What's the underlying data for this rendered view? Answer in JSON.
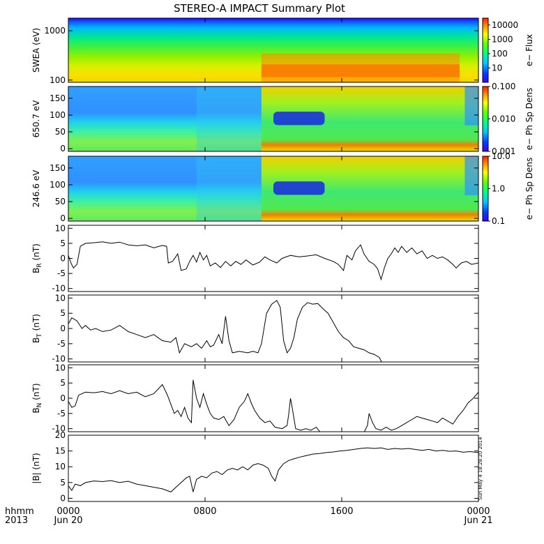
{
  "title": "STEREO-A IMPACT Summary Plot",
  "footer": {
    "left_top": "hhmm",
    "left_bottom": "2013"
  },
  "stamp": "Sun May  4 18:28:20 2014",
  "x_axis": {
    "hours": [
      0,
      24
    ],
    "ticks": [
      {
        "hour": 0,
        "top": "0000",
        "bottom": "Jun 20"
      },
      {
        "hour": 8,
        "top": "0800",
        "bottom": ""
      },
      {
        "hour": 16,
        "top": "1600",
        "bottom": ""
      },
      {
        "hour": 24,
        "top": "0000",
        "bottom": "Jun 21"
      }
    ]
  },
  "chart_data": [
    {
      "type": "heatmap",
      "name": "swea",
      "ylabel": "SWEA (eV)",
      "ylim": [
        90,
        1800
      ],
      "ylog": true,
      "yticks": [
        100,
        1000
      ],
      "ytick_labels": [
        "100",
        "1000"
      ],
      "colorbar": {
        "label": "e− Flux",
        "log": true,
        "range": [
          1,
          30000
        ],
        "ticks": [
          10,
          100,
          1000,
          10000
        ],
        "tick_labels": [
          "10",
          "100",
          "1000",
          "10000"
        ]
      },
      "colors": {
        "low": "#3c00ff",
        "high": "#ff2000"
      }
    },
    {
      "type": "heatmap",
      "name": "pad650",
      "ylabel": "650.7 eV",
      "ylim": [
        -8,
        185
      ],
      "yticks": [
        0,
        50,
        100,
        150
      ],
      "ytick_labels": [
        "0",
        "50",
        "100",
        "150"
      ],
      "colorbar": {
        "label": "e− Ph Sp Dens",
        "log": true,
        "range": [
          0.001,
          0.1
        ],
        "ticks": [
          0.001,
          0.01,
          0.1
        ],
        "tick_labels": [
          "0.001",
          "0.010",
          "0.100"
        ]
      }
    },
    {
      "type": "heatmap",
      "name": "pad246",
      "ylabel": "246.6 eV",
      "ylim": [
        -8,
        185
      ],
      "yticks": [
        0,
        50,
        100,
        150
      ],
      "ytick_labels": [
        "0",
        "50",
        "100",
        "150"
      ],
      "colorbar": {
        "label": "e− Ph Sp Dens",
        "log": true,
        "range": [
          0.1,
          10
        ],
        "ticks": [
          0.1,
          1,
          10
        ],
        "tick_labels": [
          "0.1",
          "1.0",
          "10.0"
        ]
      }
    },
    {
      "type": "line",
      "name": "BR",
      "ylabel": "B",
      "ylabel_sub": "R",
      "unit": "(nT)",
      "ylim": [
        -11,
        11
      ],
      "yticks": [
        -10,
        -5,
        0,
        5,
        10
      ],
      "ytick_labels": [
        "-10",
        "-5",
        "0",
        "5",
        "10"
      ],
      "points": [
        [
          0.0,
          1
        ],
        [
          0.15,
          -1.5
        ],
        [
          0.3,
          -3.2
        ],
        [
          0.5,
          -2
        ],
        [
          0.7,
          4
        ],
        [
          1,
          5
        ],
        [
          1.5,
          5.2
        ],
        [
          2,
          5.5
        ],
        [
          2.5,
          5
        ],
        [
          3,
          5.4
        ],
        [
          3.5,
          4.5
        ],
        [
          4,
          4.2
        ],
        [
          4.5,
          4.5
        ],
        [
          5,
          3.5
        ],
        [
          5.5,
          4.3
        ],
        [
          5.75,
          4
        ],
        [
          5.85,
          -1.5
        ],
        [
          6.1,
          -1
        ],
        [
          6.4,
          1.5
        ],
        [
          6.6,
          -4
        ],
        [
          6.9,
          -3.5
        ],
        [
          7.1,
          -1
        ],
        [
          7.3,
          1
        ],
        [
          7.5,
          -1.2
        ],
        [
          7.7,
          2
        ],
        [
          7.9,
          -0.5
        ],
        [
          8.1,
          1
        ],
        [
          8.3,
          -2.5
        ],
        [
          8.6,
          -1.5
        ],
        [
          8.9,
          -3
        ],
        [
          9.2,
          -1
        ],
        [
          9.5,
          -2.5
        ],
        [
          9.8,
          -1
        ],
        [
          10.1,
          -2
        ],
        [
          10.4,
          -0.5
        ],
        [
          10.8,
          -2.2
        ],
        [
          11.2,
          -1.2
        ],
        [
          11.5,
          0.5
        ],
        [
          11.8,
          -0.5
        ],
        [
          12.2,
          -1.5
        ],
        [
          12.5,
          0
        ],
        [
          13,
          1
        ],
        [
          13.5,
          0.5
        ],
        [
          14,
          0.8
        ],
        [
          14.5,
          1.2
        ],
        [
          15,
          0
        ],
        [
          15.5,
          -1
        ],
        [
          15.8,
          -2
        ],
        [
          16.1,
          -4
        ],
        [
          16.3,
          1
        ],
        [
          16.6,
          -0.5
        ],
        [
          16.8,
          2.5
        ],
        [
          17.1,
          4.5
        ],
        [
          17.3,
          1.5
        ],
        [
          17.6,
          -1
        ],
        [
          17.9,
          -2
        ],
        [
          18.1,
          -3.5
        ],
        [
          18.3,
          -7
        ],
        [
          18.5,
          -3
        ],
        [
          18.7,
          0
        ],
        [
          18.9,
          1.5
        ],
        [
          19.1,
          3.5
        ],
        [
          19.3,
          2
        ],
        [
          19.5,
          4
        ],
        [
          19.8,
          2
        ],
        [
          20.1,
          3.5
        ],
        [
          20.4,
          1.5
        ],
        [
          20.7,
          2.5
        ],
        [
          21,
          0
        ],
        [
          21.3,
          1
        ],
        [
          21.6,
          0
        ],
        [
          21.9,
          0.5
        ],
        [
          22.2,
          -0.5
        ],
        [
          22.5,
          -2
        ],
        [
          22.7,
          -3.2
        ],
        [
          23,
          -1.5
        ],
        [
          23.3,
          -1
        ],
        [
          23.6,
          -2
        ],
        [
          24,
          -1.5
        ]
      ]
    },
    {
      "type": "line",
      "name": "BT",
      "ylabel": "B",
      "ylabel_sub": "T",
      "unit": "(nT)",
      "ylim": [
        -11,
        11
      ],
      "yticks": [
        -10,
        -5,
        0,
        5,
        10
      ],
      "ytick_labels": [
        "-10",
        "-5",
        "0",
        "5",
        "10"
      ],
      "points": [
        [
          0.0,
          1.5
        ],
        [
          0.2,
          3.5
        ],
        [
          0.5,
          2.5
        ],
        [
          0.8,
          0
        ],
        [
          1,
          1
        ],
        [
          1.3,
          -0.5
        ],
        [
          1.6,
          0
        ],
        [
          2,
          -1
        ],
        [
          2.5,
          -0.5
        ],
        [
          3,
          1
        ],
        [
          3.5,
          -1
        ],
        [
          4,
          -2
        ],
        [
          4.5,
          -3
        ],
        [
          5,
          -2
        ],
        [
          5.5,
          -4
        ],
        [
          6,
          -4.5
        ],
        [
          6.3,
          -3
        ],
        [
          6.5,
          -8
        ],
        [
          6.8,
          -5
        ],
        [
          7.2,
          -6
        ],
        [
          7.5,
          -5
        ],
        [
          7.8,
          -6.5
        ],
        [
          8.1,
          -4
        ],
        [
          8.3,
          -6
        ],
        [
          8.5,
          -5.5
        ],
        [
          8.8,
          -2
        ],
        [
          9,
          -5
        ],
        [
          9.2,
          4
        ],
        [
          9.4,
          -4
        ],
        [
          9.6,
          -8
        ],
        [
          10,
          -7.5
        ],
        [
          10.5,
          -8
        ],
        [
          10.8,
          -7.5
        ],
        [
          11.1,
          -8
        ],
        [
          11.3,
          -5
        ],
        [
          11.6,
          5
        ],
        [
          11.9,
          8
        ],
        [
          12.2,
          9.2
        ],
        [
          12.4,
          7
        ],
        [
          12.6,
          -4
        ],
        [
          12.8,
          -8
        ],
        [
          13,
          -6.5
        ],
        [
          13.2,
          -3
        ],
        [
          13.4,
          3
        ],
        [
          13.7,
          7
        ],
        [
          14,
          8.5
        ],
        [
          14.3,
          8
        ],
        [
          14.6,
          8.2
        ],
        [
          14.9,
          6.5
        ],
        [
          15.2,
          5
        ],
        [
          15.5,
          2
        ],
        [
          15.8,
          -1
        ],
        [
          16.1,
          -3
        ],
        [
          16.4,
          -4
        ],
        [
          16.7,
          -6
        ],
        [
          17,
          -6.5
        ],
        [
          17.3,
          -7
        ],
        [
          17.6,
          -8
        ],
        [
          17.9,
          -8.5
        ],
        [
          18.2,
          -9.5
        ],
        [
          18.35,
          -11.2
        ]
      ]
    },
    {
      "type": "line",
      "name": "BN",
      "ylabel": "B",
      "ylabel_sub": "N",
      "unit": "(nT)",
      "ylim": [
        -11,
        11
      ],
      "yticks": [
        -10,
        -5,
        0,
        5,
        10
      ],
      "ytick_labels": [
        "-10",
        "-5",
        "0",
        "5",
        "10"
      ],
      "segments": [
        [
          [
            0.0,
            -1
          ],
          [
            0.2,
            -3
          ],
          [
            0.4,
            -2.5
          ],
          [
            0.6,
            1
          ],
          [
            1,
            2
          ],
          [
            1.5,
            1.8
          ],
          [
            2,
            2.2
          ],
          [
            2.5,
            1.5
          ],
          [
            3,
            2.5
          ],
          [
            3.5,
            1.5
          ],
          [
            4,
            2
          ],
          [
            4.5,
            0.5
          ],
          [
            5,
            1.5
          ],
          [
            5.5,
            4.5
          ],
          [
            5.8,
            1
          ],
          [
            6,
            -2
          ],
          [
            6.2,
            -5
          ],
          [
            6.4,
            -4
          ],
          [
            6.6,
            -6
          ],
          [
            6.8,
            -3
          ],
          [
            7,
            -6.5
          ],
          [
            7.2,
            -8
          ],
          [
            7.3,
            6
          ],
          [
            7.5,
            0
          ],
          [
            7.7,
            -3
          ],
          [
            7.9,
            1.5
          ],
          [
            8.1,
            -2
          ],
          [
            8.3,
            -5
          ],
          [
            8.5,
            -6.5
          ],
          [
            8.8,
            -7
          ],
          [
            9.1,
            -6
          ],
          [
            9.4,
            -9
          ],
          [
            9.7,
            -7
          ],
          [
            10,
            -3
          ],
          [
            10.3,
            -1
          ],
          [
            10.5,
            1.5
          ],
          [
            10.7,
            -1.5
          ],
          [
            10.9,
            -4
          ],
          [
            11.2,
            -6.5
          ],
          [
            11.5,
            -8
          ],
          [
            11.8,
            -7.5
          ],
          [
            12.1,
            -9.5
          ],
          [
            12.5,
            -10
          ],
          [
            12.8,
            -9
          ],
          [
            12.9,
            -5
          ],
          [
            13,
            0
          ],
          [
            13.1,
            -3
          ],
          [
            13.3,
            -10
          ],
          [
            13.6,
            -10.5
          ],
          [
            13.9,
            -10
          ],
          [
            14.2,
            -10.5
          ],
          [
            14.5,
            -9.5
          ],
          [
            14.75,
            -11.2
          ]
        ],
        [
          [
            17.3,
            -11.2
          ],
          [
            17.5,
            -9
          ],
          [
            17.6,
            -5
          ],
          [
            17.8,
            -8
          ],
          [
            18,
            -10
          ],
          [
            18.3,
            -10.5
          ],
          [
            18.6,
            -9.5
          ],
          [
            18.9,
            -10.5
          ],
          [
            19.2,
            -10
          ],
          [
            19.5,
            -9
          ],
          [
            19.8,
            -8
          ],
          [
            20.1,
            -7
          ],
          [
            20.4,
            -6
          ],
          [
            20.7,
            -6.5
          ],
          [
            21,
            -7
          ],
          [
            21.3,
            -7.5
          ],
          [
            21.6,
            -8
          ],
          [
            21.9,
            -6.5
          ],
          [
            22.2,
            -7.5
          ],
          [
            22.5,
            -8.5
          ],
          [
            22.8,
            -6
          ],
          [
            23.1,
            -4
          ],
          [
            23.4,
            -1.5
          ],
          [
            23.7,
            0
          ],
          [
            24,
            2
          ]
        ]
      ]
    },
    {
      "type": "line",
      "name": "Bmag",
      "ylabel": "|B| (nT)",
      "ylim": [
        -1,
        20
      ],
      "yticks": [
        0,
        5,
        10,
        15,
        20
      ],
      "ytick_labels": [
        "0",
        "5",
        "10",
        "15",
        "20"
      ],
      "points": [
        [
          0.0,
          4
        ],
        [
          0.2,
          2.5
        ],
        [
          0.4,
          4.5
        ],
        [
          0.7,
          4
        ],
        [
          1,
          5
        ],
        [
          1.5,
          5.5
        ],
        [
          2,
          5.3
        ],
        [
          2.5,
          5.6
        ],
        [
          3,
          5
        ],
        [
          3.5,
          5.4
        ],
        [
          4,
          4.5
        ],
        [
          4.5,
          4
        ],
        [
          5,
          3.5
        ],
        [
          5.5,
          3
        ],
        [
          6,
          2
        ],
        [
          6.3,
          3.5
        ],
        [
          6.6,
          5
        ],
        [
          6.9,
          6.5
        ],
        [
          7.1,
          7
        ],
        [
          7.3,
          2
        ],
        [
          7.5,
          6
        ],
        [
          7.8,
          7
        ],
        [
          8.1,
          6.5
        ],
        [
          8.4,
          8
        ],
        [
          8.7,
          8.5
        ],
        [
          9,
          7.5
        ],
        [
          9.3,
          9
        ],
        [
          9.6,
          9.5
        ],
        [
          9.9,
          9
        ],
        [
          10.2,
          10
        ],
        [
          10.5,
          9
        ],
        [
          10.8,
          10.5
        ],
        [
          11.1,
          11
        ],
        [
          11.4,
          10.5
        ],
        [
          11.7,
          9.5
        ],
        [
          11.9,
          7
        ],
        [
          12.1,
          5.5
        ],
        [
          12.3,
          9
        ],
        [
          12.6,
          11
        ],
        [
          12.9,
          12
        ],
        [
          13.2,
          12.5
        ],
        [
          13.5,
          13
        ],
        [
          13.9,
          13.5
        ],
        [
          14.3,
          14
        ],
        [
          14.7,
          14.2
        ],
        [
          15.1,
          14.5
        ],
        [
          15.5,
          14.7
        ],
        [
          15.9,
          15
        ],
        [
          16.3,
          15.2
        ],
        [
          16.7,
          15.5
        ],
        [
          17.1,
          15.8
        ],
        [
          17.5,
          16
        ],
        [
          17.9,
          15.8
        ],
        [
          18.3,
          16
        ],
        [
          18.7,
          15.5
        ],
        [
          19.1,
          15.8
        ],
        [
          19.5,
          15.6
        ],
        [
          19.9,
          15.8
        ],
        [
          20.3,
          15.5
        ],
        [
          20.7,
          15.2
        ],
        [
          21.1,
          15.5
        ],
        [
          21.5,
          15
        ],
        [
          21.9,
          15.2
        ],
        [
          22.3,
          14.9
        ],
        [
          22.7,
          15
        ],
        [
          23.1,
          14.6
        ],
        [
          23.5,
          14.8
        ],
        [
          24,
          14.5
        ]
      ]
    }
  ]
}
